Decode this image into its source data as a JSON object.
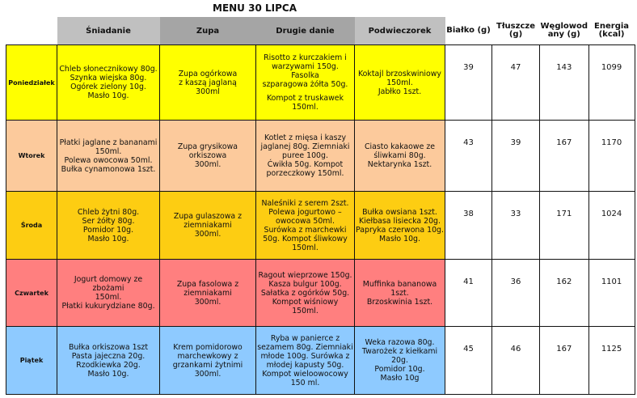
{
  "title": "MENU 30 LIPCA",
  "headers": [
    "Śniadanie",
    "Zupa",
    "Drugie danie",
    "Podwieczorek",
    "Białko (g)",
    "Tłuszcze\n(g)",
    "Węglowod\nany (g)",
    "Energia\n(kcal)"
  ],
  "rows": [
    {
      "day": "Poniedziałek",
      "breakfast": "Chleb słonecznikowy 80g.\nSzynka wiejska 80g.\nOgórek zielony 10g.\nMasło 10g.",
      "soup": "Zupa ogórkowa\nz kaszą jaglaną\n300ml",
      "main": "Risotto z kurczakiem i\nwarzywami 150g. Fasolka\nszparagowa żółta 50g.",
      "main2": "Kompot z truskawek\n150ml.",
      "snack": "Koktajl brzoskwiniowy\n150ml.\nJabłko 1szt.",
      "protein": "39",
      "fat": "47",
      "carbs": "143",
      "energy": "1099"
    },
    {
      "day": "Wtorek",
      "breakfast": "Płatki jaglane z bananami\n150ml.\nPolewa owocowa 50ml.\nBułka cynamonowa 1szt.",
      "soup": "Zupa grysikowa\norkiszowa\n300ml.",
      "main": "Kotlet z mięsa i kaszy\njaglanej 80g. Ziemniaki\npuree 100g.\nĆwikła 50g.  Kompot\nporzeczkowy 150ml.",
      "snack": "Ciasto kakaowe ze\nśliwkami 80g.\nNektarynka 1szt.",
      "protein": "43",
      "fat": "39",
      "carbs": "167",
      "energy": "1170"
    },
    {
      "day": "Środa",
      "breakfast": "Chleb żytni 80g.\nSer żółty 80g.\nPomidor 10g.\nMasło 10g.",
      "soup": "Zupa gulaszowa z\nziemniakami\n300ml.",
      "main": "Naleśniki z serem 2szt.\nPolewa jogurtowo –\nowocowa 50ml.\nSurówka z marchewki\n50g.  Kompot śliwkowy\n150ml.",
      "snack": "Bułka owsiana 1szt.\nKiełbasa lisiecka 20g.\nPapryka czerwona 10g.\nMasło 10g.",
      "protein": "38",
      "fat": "33",
      "carbs": "171",
      "energy": "1024"
    },
    {
      "day": "Czwartek",
      "breakfast": "Jogurt domowy ze zbożami\n150ml.\nPłatki kukurydziane 80g.",
      "soup": "Zupa fasolowa z\nziemniakami\n300ml.",
      "main": "Ragout wieprzowe 150g.\nKasza bulgur 100g.\nSałatka z ogórków 50g.\nKompot wiśniowy\n150ml.",
      "snack": "Muffinka bananowa 1szt.\nBrzoskwinia 1szt.",
      "protein": "41",
      "fat": "36",
      "carbs": "162",
      "energy": "1101"
    },
    {
      "day": "Piątek",
      "breakfast": "Bułka orkiszowa 1szt\nPasta jajeczna 20g.\nRzodkiewka 20g.\nMasło 10g.",
      "soup": "Krem pomidorowo\nmarchewkowy z\ngrzankami żytnimi\n300ml.",
      "main": "Ryba w panierce z\nsezamem 80g. Ziemniaki\nmłode 100g. Surówka z\nmłodej kapusty 50g.\nKompot wieloowocowy\n150 ml.",
      "snack": "Weka razowa 80g.\nTwarożek z kiełkami 20g.\nPomidor 10g.\nMasło 10g",
      "protein": "45",
      "fat": "46",
      "carbs": "167",
      "energy": "1125"
    }
  ]
}
